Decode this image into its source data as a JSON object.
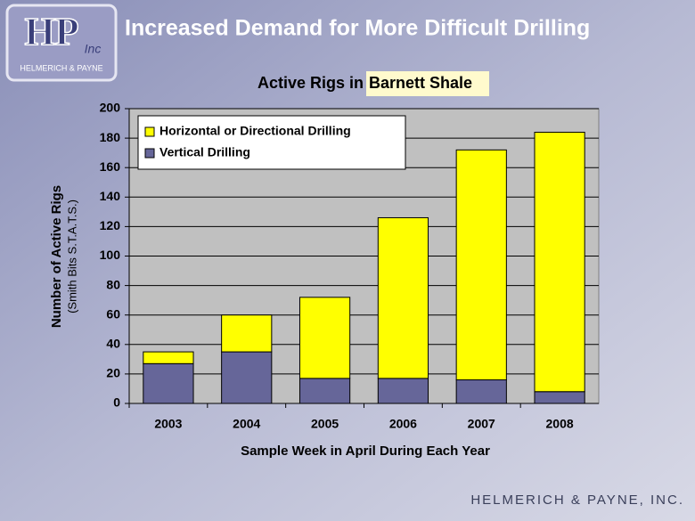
{
  "slide": {
    "heading": "Increased Demand for More Difficult Drilling",
    "logo": {
      "mark": "HP",
      "suffix": "Inc",
      "name": "HELMERICH & PAYNE"
    },
    "footer": "HELMERICH & PAYNE, INC."
  },
  "chart_data": {
    "type": "stacked-bar",
    "title": "Active Rigs in",
    "title_highlight": "Barnett Shale",
    "y_label": "Number of Active Rigs",
    "y_sublabel": "(Smith Bits S.T.A.T.S.)",
    "x_label": "Sample Week in April During Each Year",
    "categories": [
      "2003",
      "2004",
      "2005",
      "2006",
      "2007",
      "2008"
    ],
    "series": [
      {
        "name": "Vertical Drilling",
        "color": "#666699",
        "values": [
          27,
          35,
          17,
          17,
          16,
          8
        ]
      },
      {
        "name": "Horizontal or Directional Drilling",
        "color": "#ffff00",
        "values": [
          8,
          25,
          55,
          109,
          156,
          176
        ]
      }
    ],
    "ylim": [
      0,
      200
    ],
    "yticks": [
      0,
      20,
      40,
      60,
      80,
      100,
      120,
      140,
      160,
      180,
      200
    ],
    "grid": true
  }
}
